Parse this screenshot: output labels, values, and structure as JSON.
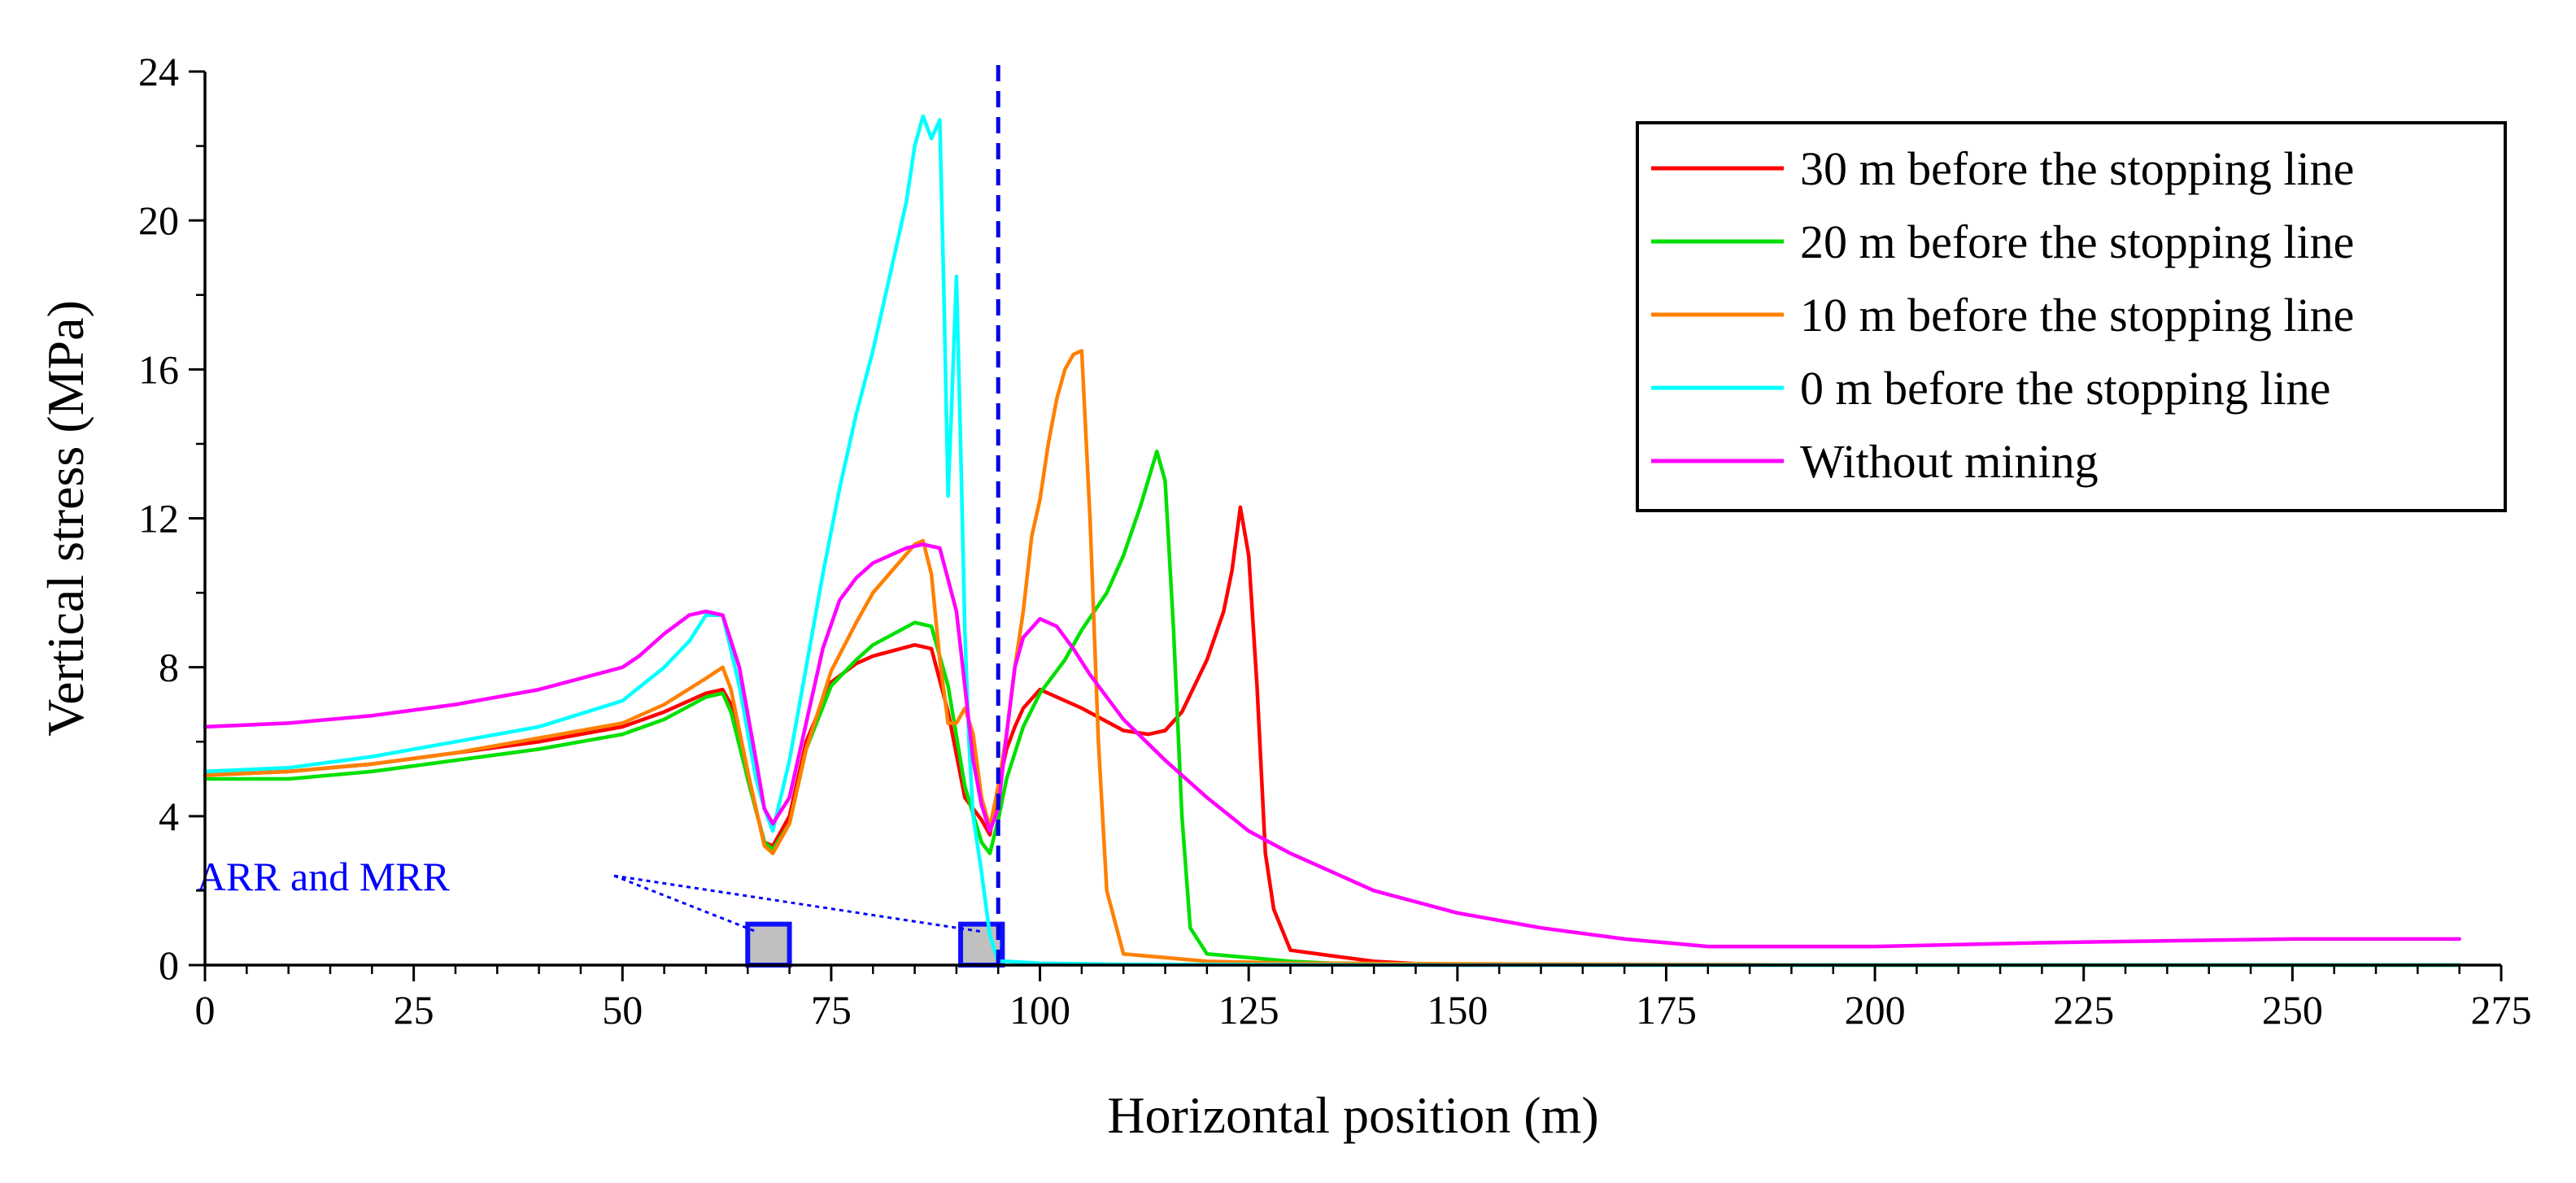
{
  "chart_data": {
    "type": "line",
    "title": "",
    "xlabel": "Horizontal position (m)",
    "ylabel": "Vertical stress (MPa)",
    "xlim": [
      0,
      275
    ],
    "ylim": [
      0,
      24
    ],
    "xticks": [
      0,
      25,
      50,
      75,
      100,
      125,
      150,
      175,
      200,
      225,
      250,
      275
    ],
    "yticks": [
      0,
      4,
      8,
      12,
      16,
      20,
      24
    ],
    "legend_position": "top-right",
    "stopping_line_x": 95,
    "annotation": {
      "text": "ARR and MRR",
      "color": "#0000ff",
      "anchor": [
        49,
        2.4
      ],
      "targets": [
        [
          66,
          0.9
        ],
        [
          93,
          0.9
        ]
      ]
    },
    "blocks": [
      {
        "x0": 65,
        "x1": 70,
        "y0": 0,
        "y1": 1.1
      },
      {
        "x0": 90.5,
        "x1": 95.5,
        "y0": 0,
        "y1": 1.1
      }
    ],
    "series": [
      {
        "name": "30 m before the stopping line",
        "color": "#ff0000",
        "x": [
          0,
          10,
          20,
          30,
          40,
          50,
          55,
          60,
          62,
          63,
          65,
          67,
          68,
          70,
          72,
          75,
          78,
          80,
          85,
          87,
          89,
          91,
          93,
          94,
          95,
          96,
          97,
          98,
          100,
          105,
          110,
          113,
          115,
          117,
          120,
          122,
          123,
          124,
          125,
          126,
          127,
          128,
          130,
          135,
          140,
          145,
          150,
          160,
          200,
          270
        ],
        "y": [
          5.1,
          5.2,
          5.4,
          5.7,
          6.0,
          6.4,
          6.8,
          7.3,
          7.4,
          7.0,
          5.0,
          3.3,
          3.2,
          4.0,
          6.0,
          7.6,
          8.1,
          8.3,
          8.6,
          8.5,
          6.8,
          4.5,
          3.9,
          3.5,
          4.8,
          5.8,
          6.4,
          6.9,
          7.4,
          6.9,
          6.3,
          6.2,
          6.3,
          6.8,
          8.2,
          9.5,
          10.6,
          12.3,
          11.0,
          7.5,
          3.0,
          1.5,
          0.4,
          0.25,
          0.1,
          0.04,
          0.02,
          0.01,
          0.0,
          0.0
        ]
      },
      {
        "name": "20 m before the stopping line",
        "color": "#00e000",
        "x": [
          0,
          10,
          20,
          30,
          40,
          50,
          55,
          60,
          62,
          63,
          65,
          67,
          68,
          70,
          72,
          75,
          78,
          80,
          85,
          87,
          89,
          91,
          93,
          94,
          95,
          96,
          98,
          100,
          103,
          105,
          108,
          110,
          112,
          114,
          115,
          116,
          117,
          118,
          120,
          125,
          130,
          135,
          150,
          200,
          270
        ],
        "y": [
          5.0,
          5.0,
          5.2,
          5.5,
          5.8,
          6.2,
          6.6,
          7.2,
          7.3,
          6.8,
          5.0,
          3.3,
          3.1,
          3.8,
          5.8,
          7.5,
          8.2,
          8.6,
          9.2,
          9.1,
          7.5,
          4.8,
          3.3,
          3.0,
          3.9,
          5.0,
          6.4,
          7.3,
          8.2,
          9.0,
          10.0,
          11.0,
          12.3,
          13.8,
          13.0,
          9.0,
          4.0,
          1.0,
          0.3,
          0.2,
          0.1,
          0.05,
          0.02,
          0.0,
          0.0
        ]
      },
      {
        "name": "10 m before the stopping line",
        "color": "#ff8000",
        "x": [
          0,
          10,
          20,
          30,
          40,
          50,
          55,
          60,
          62,
          63,
          65,
          67,
          68,
          70,
          72,
          75,
          78,
          80,
          85,
          86,
          87,
          88,
          89,
          90,
          91,
          92,
          93,
          94,
          95,
          96,
          97,
          98,
          99,
          100,
          101,
          102,
          103,
          104,
          105,
          106,
          107,
          108,
          110,
          115,
          120,
          130,
          200,
          270
        ],
        "y": [
          5.1,
          5.2,
          5.4,
          5.7,
          6.1,
          6.5,
          7.0,
          7.7,
          8.0,
          7.4,
          5.2,
          3.2,
          3.0,
          3.8,
          5.8,
          7.9,
          9.2,
          10.0,
          11.3,
          11.4,
          10.5,
          8.2,
          6.5,
          6.5,
          6.9,
          6.2,
          4.5,
          3.7,
          4.8,
          6.2,
          8.0,
          9.5,
          11.5,
          12.5,
          14.0,
          15.2,
          16.0,
          16.4,
          16.5,
          12.0,
          6.0,
          2.0,
          0.3,
          0.2,
          0.1,
          0.05,
          0.0,
          0.0
        ]
      },
      {
        "name": "0 m before the stopping line",
        "color": "#00ffff",
        "x": [
          0,
          10,
          20,
          30,
          40,
          50,
          55,
          58,
          60,
          62,
          64,
          66,
          67,
          68,
          70,
          72,
          74,
          76,
          78,
          80,
          82,
          84,
          85,
          86,
          87,
          88,
          88.5,
          89,
          89.5,
          90,
          90.5,
          91,
          91.5,
          92,
          93,
          94,
          95,
          96,
          100,
          110,
          150,
          200,
          270
        ],
        "y": [
          5.2,
          5.3,
          5.6,
          6.0,
          6.4,
          7.1,
          8.0,
          8.7,
          9.4,
          9.4,
          7.5,
          5.0,
          4.2,
          3.6,
          5.5,
          8.0,
          10.5,
          12.8,
          14.8,
          16.5,
          18.5,
          20.5,
          22.0,
          22.8,
          22.2,
          22.7,
          18.0,
          12.6,
          15.5,
          18.5,
          14.0,
          9.0,
          6.0,
          4.0,
          2.5,
          0.8,
          0.1,
          0.1,
          0.05,
          0.02,
          0.0,
          0.0,
          0.0
        ]
      },
      {
        "name": "Without mining",
        "color": "#ff00ff",
        "x": [
          0,
          10,
          20,
          30,
          40,
          50,
          52,
          55,
          58,
          60,
          62,
          64,
          66,
          67,
          68,
          70,
          72,
          74,
          76,
          78,
          80,
          82,
          84,
          86,
          88,
          90,
          91,
          92,
          93,
          94,
          95,
          96,
          97,
          98,
          100,
          102,
          104,
          106,
          110,
          115,
          120,
          125,
          130,
          140,
          150,
          160,
          170,
          180,
          200,
          220,
          250,
          270
        ],
        "y": [
          6.4,
          6.5,
          6.7,
          7.0,
          7.4,
          8.0,
          8.3,
          8.9,
          9.4,
          9.5,
          9.4,
          8.0,
          5.5,
          4.2,
          3.8,
          4.5,
          6.5,
          8.5,
          9.8,
          10.4,
          10.8,
          11.0,
          11.2,
          11.3,
          11.2,
          9.5,
          7.5,
          5.5,
          4.3,
          3.6,
          4.2,
          6.2,
          8.0,
          8.8,
          9.3,
          9.1,
          8.5,
          7.8,
          6.6,
          5.5,
          4.5,
          3.6,
          3.0,
          2.0,
          1.4,
          1.0,
          0.7,
          0.5,
          0.5,
          0.6,
          0.7,
          0.7
        ]
      }
    ]
  }
}
